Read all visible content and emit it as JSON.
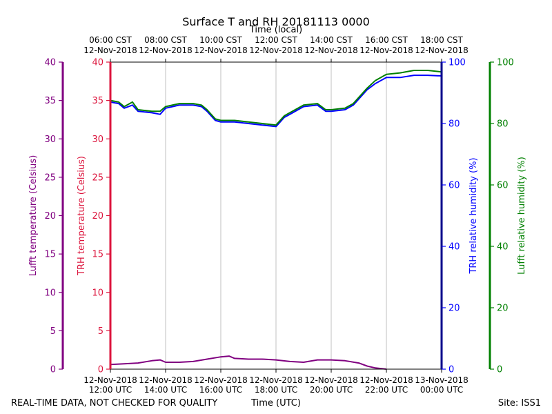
{
  "chart_data": {
    "type": "line",
    "title": "Surface T and RH 20181113 0000",
    "footer": {
      "left": "REAL-TIME DATA, NOT CHECKED FOR QUALITY",
      "right": "Site: ISS1"
    },
    "x_bottom": {
      "label": "Time (UTC)",
      "ticks": [
        {
          "hour": 12,
          "line1": "12-Nov-2018",
          "line2": "12:00 UTC"
        },
        {
          "hour": 14,
          "line1": "12-Nov-2018",
          "line2": "14:00 UTC"
        },
        {
          "hour": 16,
          "line1": "12-Nov-2018",
          "line2": "16:00 UTC"
        },
        {
          "hour": 18,
          "line1": "12-Nov-2018",
          "line2": "18:00 UTC"
        },
        {
          "hour": 20,
          "line1": "12-Nov-2018",
          "line2": "20:00 UTC"
        },
        {
          "hour": 22,
          "line1": "12-Nov-2018",
          "line2": "22:00 UTC"
        },
        {
          "hour": 24,
          "line1": "13-Nov-2018",
          "line2": "00:00 UTC"
        }
      ],
      "range_hours_utc": [
        12,
        24
      ]
    },
    "x_top": {
      "label": "Time (local)",
      "ticks": [
        {
          "hour": 12,
          "line1": "06:00 CST",
          "line2": "12-Nov-2018"
        },
        {
          "hour": 14,
          "line1": "08:00 CST",
          "line2": "12-Nov-2018"
        },
        {
          "hour": 16,
          "line1": "10:00 CST",
          "line2": "12-Nov-2018"
        },
        {
          "hour": 18,
          "line1": "12:00 CST",
          "line2": "12-Nov-2018"
        },
        {
          "hour": 20,
          "line1": "14:00 CST",
          "line2": "12-Nov-2018"
        },
        {
          "hour": 22,
          "line1": "16:00 CST",
          "line2": "12-Nov-2018"
        },
        {
          "hour": 24,
          "line1": "18:00 CST",
          "line2": "12-Nov-2018"
        }
      ]
    },
    "axes": {
      "lufft_temp": {
        "label": "Lufft temperature (Celsius)",
        "range": [
          0,
          40
        ],
        "ticks": [
          0,
          5,
          10,
          15,
          20,
          25,
          30,
          35,
          40
        ],
        "color": "#800080"
      },
      "trh_temp": {
        "label": "TRH temperature (Celsius)",
        "range": [
          0,
          40
        ],
        "ticks": [
          0,
          5,
          10,
          15,
          20,
          25,
          30,
          35,
          40
        ],
        "color": "#dc143c"
      },
      "trh_rh": {
        "label": "TRH relative humidity (%)",
        "range": [
          0,
          100
        ],
        "ticks": [
          0,
          20,
          40,
          60,
          80,
          100
        ],
        "color": "#0000ff",
        "spine_color": "#00008b"
      },
      "lufft_rh": {
        "label": "Lufft relative humidity (%)",
        "range": [
          0,
          100
        ],
        "ticks": [
          0,
          20,
          40,
          60,
          80,
          100
        ],
        "color": "#008000"
      }
    },
    "grid": "vertical",
    "series": [
      {
        "axis": "lufft_temp",
        "color": "#800080",
        "x": [
          12.0,
          12.5,
          13.0,
          13.5,
          13.8,
          14.0,
          14.5,
          15.0,
          15.5,
          16.0,
          16.3,
          16.5,
          17.0,
          17.5,
          18.0,
          18.5,
          19.0,
          19.5,
          20.0,
          20.5,
          21.0,
          21.3,
          21.6,
          22.0
        ],
        "y": [
          0.6,
          0.7,
          0.8,
          1.1,
          1.2,
          0.9,
          0.9,
          1.0,
          1.3,
          1.6,
          1.7,
          1.4,
          1.3,
          1.3,
          1.2,
          1.0,
          0.9,
          1.2,
          1.2,
          1.1,
          0.8,
          0.4,
          0.15,
          0.0
        ]
      },
      {
        "axis": "trh_rh",
        "color": "#0000ff",
        "x": [
          12.0,
          12.3,
          12.5,
          12.8,
          13.0,
          13.5,
          13.8,
          14.0,
          14.5,
          15.0,
          15.3,
          15.5,
          15.8,
          16.0,
          16.5,
          17.0,
          17.5,
          18.0,
          18.3,
          18.5,
          19.0,
          19.5,
          19.8,
          20.0,
          20.5,
          20.8,
          21.0,
          21.3,
          21.6,
          22.0,
          22.5,
          23.0,
          23.5,
          24.0
        ],
        "y": [
          87,
          86.5,
          85,
          86,
          84,
          83.5,
          83,
          85,
          86,
          86,
          85.5,
          84,
          81,
          80.5,
          80.5,
          80,
          79.5,
          79,
          82,
          83,
          85.5,
          86,
          84,
          84,
          84.5,
          86,
          88,
          91,
          93,
          95,
          95,
          95.7,
          95.7,
          95.5
        ]
      },
      {
        "axis": "lufft_rh",
        "color": "#008000",
        "x": [
          12.0,
          12.3,
          12.5,
          12.8,
          13.0,
          13.5,
          13.8,
          14.0,
          14.5,
          15.0,
          15.3,
          15.5,
          15.8,
          16.0,
          16.5,
          17.0,
          17.5,
          18.0,
          18.3,
          18.5,
          19.0,
          19.5,
          19.8,
          20.0,
          20.5,
          20.8,
          21.0,
          21.3,
          21.6,
          22.0,
          22.5,
          23.0,
          23.5,
          24.0
        ],
        "y": [
          87.5,
          87,
          85.5,
          87,
          84.5,
          84,
          84,
          85.5,
          86.5,
          86.5,
          86,
          84.5,
          81.5,
          81,
          81,
          80.5,
          80,
          79.5,
          82.5,
          83.5,
          86,
          86.5,
          84.5,
          84.5,
          85,
          86.5,
          88.5,
          91.5,
          94,
          96,
          96.5,
          97.3,
          97.3,
          96.8
        ]
      }
    ]
  }
}
